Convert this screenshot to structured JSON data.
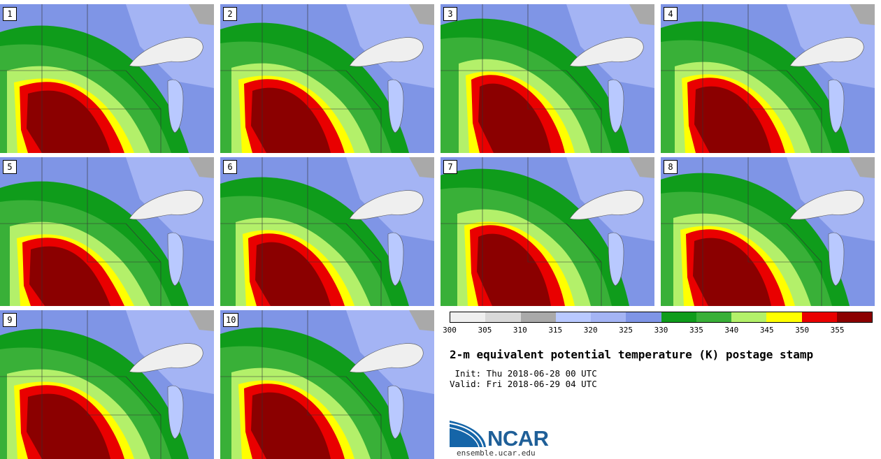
{
  "stamps": [
    {
      "label": "1"
    },
    {
      "label": "2"
    },
    {
      "label": "3"
    },
    {
      "label": "4"
    },
    {
      "label": "5"
    },
    {
      "label": "6"
    },
    {
      "label": "7"
    },
    {
      "label": "8"
    },
    {
      "label": "9"
    },
    {
      "label": "10"
    }
  ],
  "colorbar": {
    "colors": [
      "#efefef",
      "#d9d9d9",
      "#a9a9a9",
      "#b9c9ff",
      "#a4b4f4",
      "#7f95e6",
      "#0f9c1b",
      "#39b038",
      "#b3f06a",
      "#ffff00",
      "#e90000",
      "#8b0000"
    ],
    "ticks": [
      "300",
      "305",
      "310",
      "315",
      "320",
      "325",
      "330",
      "335",
      "340",
      "345",
      "350",
      "355"
    ]
  },
  "title": "2-m equivalent potential temperature (K) postage stamp",
  "init": " Init: Thu 2018-06-28 00 UTC",
  "valid": "Valid: Fri 2018-06-29 04 UTC",
  "logo": {
    "text": "NCAR",
    "site": "ensemble.ucar.edu"
  }
}
